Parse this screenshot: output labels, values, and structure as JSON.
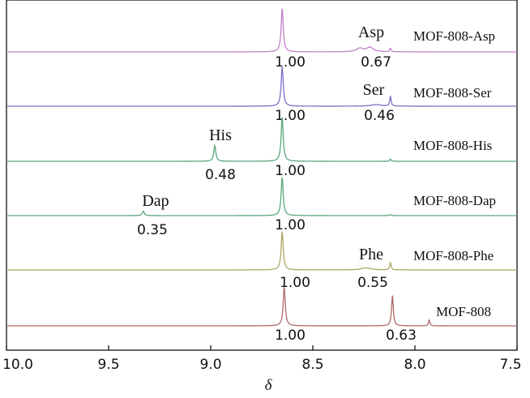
{
  "chart_data": {
    "type": "line",
    "xlabel": "δ",
    "xlim": [
      10.0,
      7.5
    ],
    "x_reversed": true,
    "x_ticks": [
      10.0,
      9.5,
      9.0,
      8.5,
      8.0,
      7.5
    ],
    "x_tick_labels": [
      "10.0",
      "9.5",
      "9.0",
      "8.5",
      "8.0",
      "7.5"
    ],
    "grid": false,
    "series": [
      {
        "name": "MOF-808-Asp",
        "color": "#c080c8",
        "peaks": [
          {
            "x": 8.65,
            "height": 1.0,
            "width": 0.006,
            "label": "1.00"
          },
          {
            "x": 8.27,
            "height": 0.08,
            "width": 0.02
          },
          {
            "x": 8.22,
            "height": 0.1,
            "width": 0.02,
            "label": "Asp"
          },
          {
            "x": 8.12,
            "height": 0.08,
            "width": 0.004
          }
        ],
        "integrals": [
          "1.00",
          "0.67"
        ]
      },
      {
        "name": "MOF-808-Ser",
        "color": "#7d70c8",
        "peaks": [
          {
            "x": 8.65,
            "height": 1.0,
            "width": 0.006
          },
          {
            "x": 8.19,
            "height": 0.04,
            "width": 0.03,
            "label": "Ser"
          },
          {
            "x": 8.12,
            "height": 0.25,
            "width": 0.004
          }
        ],
        "integrals": [
          "1.00",
          "0.46"
        ]
      },
      {
        "name": "MOF-808-His",
        "color": "#5aa67c",
        "peaks": [
          {
            "x": 8.98,
            "height": 0.35,
            "width": 0.006,
            "label": "His"
          },
          {
            "x": 8.65,
            "height": 1.0,
            "width": 0.006
          },
          {
            "x": 8.12,
            "height": 0.05,
            "width": 0.004
          }
        ],
        "integrals": [
          "0.48",
          "1.00"
        ]
      },
      {
        "name": "MOF-808-Dap",
        "color": "#5aa67c",
        "peaks": [
          {
            "x": 9.33,
            "height": 0.12,
            "width": 0.006,
            "label": "Dap"
          },
          {
            "x": 8.65,
            "height": 1.0,
            "width": 0.006
          },
          {
            "x": 8.12,
            "height": 0.03,
            "width": 0.004
          }
        ],
        "integrals": [
          "0.35",
          "1.00"
        ]
      },
      {
        "name": "MOF-808-Phe",
        "color": "#aaa860",
        "peaks": [
          {
            "x": 8.65,
            "height": 1.0,
            "width": 0.006
          },
          {
            "x": 8.24,
            "height": 0.05,
            "width": 0.03,
            "label": "Phe"
          },
          {
            "x": 8.12,
            "height": 0.2,
            "width": 0.004
          }
        ],
        "integrals": [
          "1.00",
          "0.55"
        ]
      },
      {
        "name": "MOF-808",
        "color": "#b06a6a",
        "peaks": [
          {
            "x": 8.64,
            "height": 1.0,
            "width": 0.006
          },
          {
            "x": 8.11,
            "height": 0.78,
            "width": 0.005
          },
          {
            "x": 7.93,
            "height": 0.15,
            "width": 0.004
          }
        ],
        "integrals": [
          "1.00",
          "0.63"
        ]
      }
    ]
  }
}
